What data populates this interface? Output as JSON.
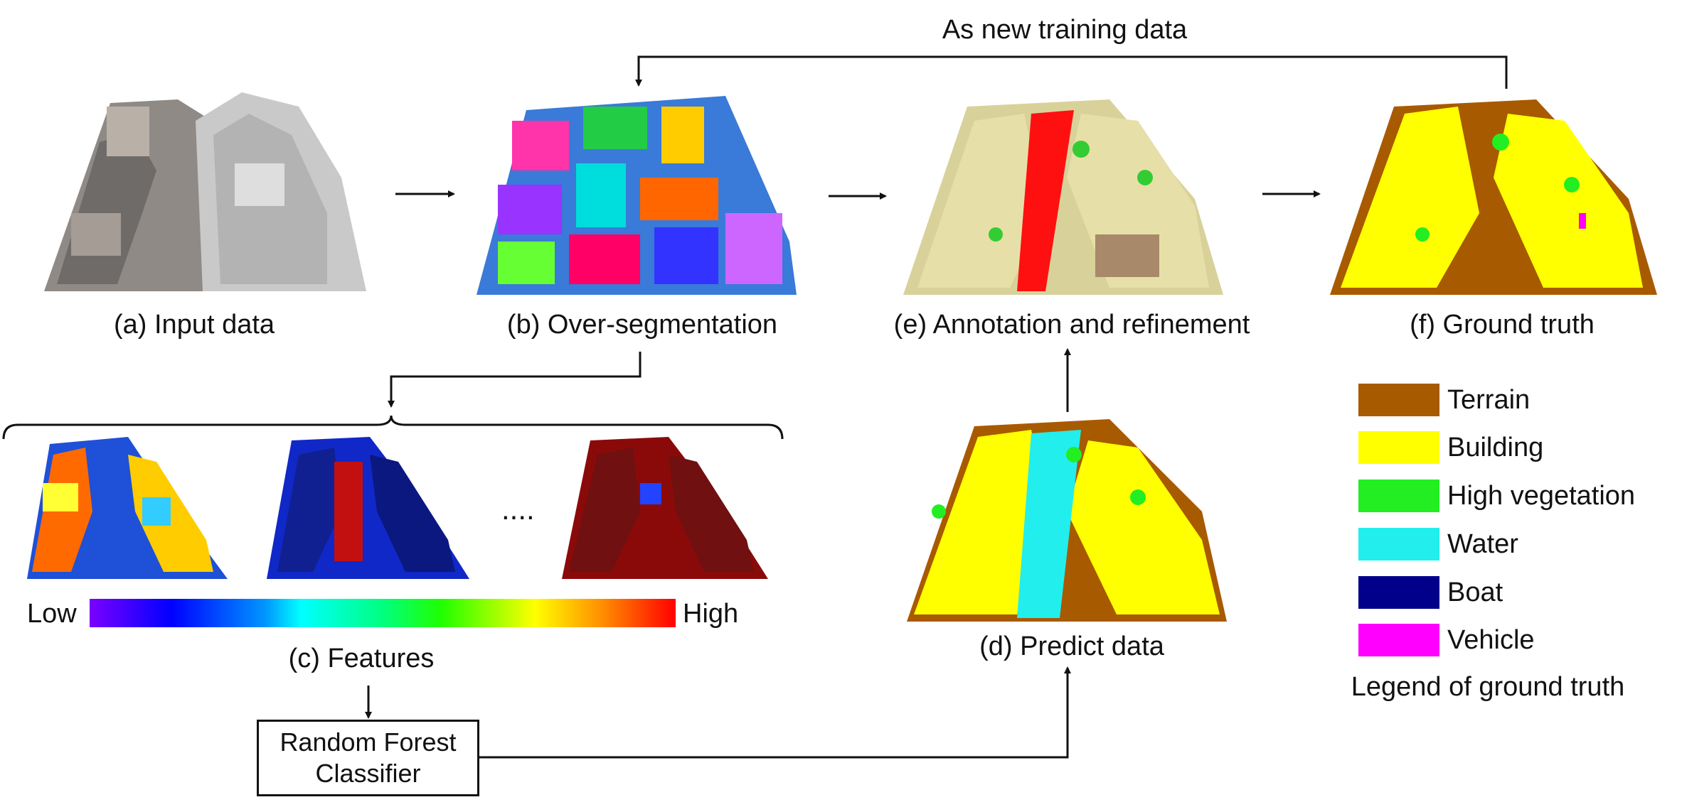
{
  "top_label": "As new training data",
  "panels": {
    "a": "(a)  Input data",
    "b": "(b) Over-segmentation",
    "c": "(c) Features",
    "d": "(d) Predict data",
    "e": "(e) Annotation and refinement",
    "f": "(f) Ground truth"
  },
  "features": {
    "ellipsis": "....",
    "colorbar_low": "Low",
    "colorbar_high": "High"
  },
  "classifier": {
    "line1": "Random Forest",
    "line2": "Classifier"
  },
  "legend": {
    "title": "Legend of ground truth",
    "items": [
      {
        "label": "Terrain",
        "color": "#a85a00"
      },
      {
        "label": "Building",
        "color": "#ffff00"
      },
      {
        "label": "High vegetation",
        "color": "#22ee22"
      },
      {
        "label": "Water",
        "color": "#22eeee"
      },
      {
        "label": "Boat",
        "color": "#00008b"
      },
      {
        "label": "Vehicle",
        "color": "#ff00ff"
      }
    ]
  }
}
